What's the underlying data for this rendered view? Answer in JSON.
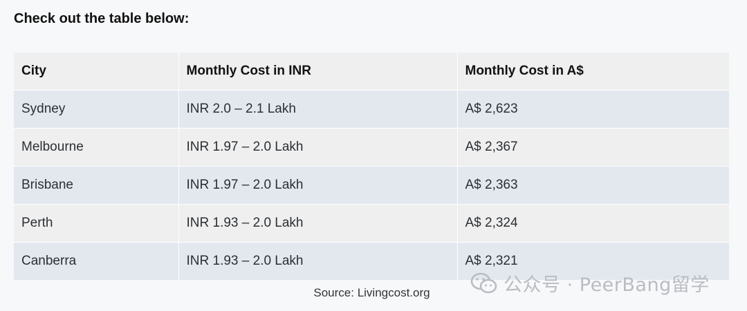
{
  "intro": "Check out the table below:",
  "table": {
    "headers": [
      "City",
      "Monthly Cost in INR",
      "Monthly Cost in A$"
    ],
    "rows": [
      [
        "Sydney",
        "INR 2.0 – 2.1 Lakh",
        "A$ 2,623"
      ],
      [
        "Melbourne",
        "INR 1.97 – 2.0 Lakh",
        "A$ 2,367"
      ],
      [
        "Brisbane",
        "INR 1.97 – 2.0 Lakh",
        "A$ 2,363"
      ],
      [
        "Perth",
        "INR 1.93 – 2.0 Lakh",
        "A$ 2,324"
      ],
      [
        "Canberra",
        "INR 1.93 – 2.0 Lakh",
        "A$ 2,321"
      ]
    ]
  },
  "source": "Source: Livingcost.org",
  "watermark": {
    "icon": "wechat-icon",
    "text": "公众号 · PeerBang留学"
  }
}
